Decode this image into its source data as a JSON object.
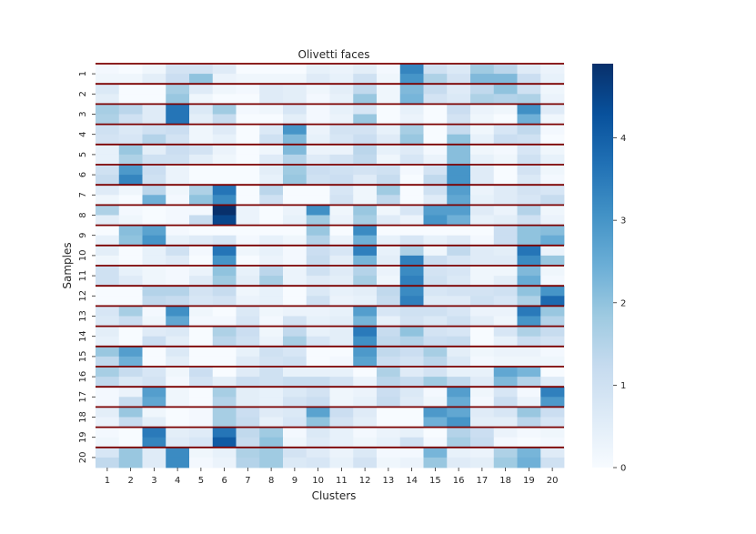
{
  "chart_data": {
    "type": "heatmap",
    "title": "Olivetti faces",
    "xlabel": "Clusters",
    "ylabel": "Samples",
    "x_categories": [
      "1",
      "2",
      "3",
      "4",
      "5",
      "6",
      "7",
      "8",
      "9",
      "10",
      "11",
      "12",
      "13",
      "14",
      "15",
      "16",
      "17",
      "18",
      "19",
      "20"
    ],
    "y_categories": [
      "1",
      "2",
      "3",
      "4",
      "5",
      "6",
      "7",
      "8",
      "9",
      "10",
      "11",
      "12",
      "13",
      "14",
      "15",
      "16",
      "17",
      "18",
      "19",
      "20"
    ],
    "colorbar_ticks": [
      0,
      1,
      2,
      3,
      4
    ],
    "value_range": [
      0,
      4.9
    ],
    "colormap": [
      "#f7fbff",
      "#deebf7",
      "#c6dbef",
      "#9ecae1",
      "#6baed6",
      "#4292c6",
      "#2171b5",
      "#08519c",
      "#08306b"
    ],
    "separator_color": "#7b0000",
    "rows_per_sample": 2,
    "values": [
      [
        0.1,
        0.0,
        0.2,
        0.9,
        0.9,
        0.6,
        0.0,
        0.0,
        0.0,
        0.4,
        0.3,
        0.5,
        0.1,
        3.3,
        1.0,
        0.7,
        1.8,
        1.4,
        0.6,
        0.3
      ],
      [
        0.2,
        0.2,
        0.5,
        1.1,
        2.0,
        0.3,
        0.2,
        0.2,
        0.2,
        0.6,
        0.4,
        1.0,
        0.2,
        3.0,
        1.6,
        0.9,
        2.2,
        2.2,
        1.1,
        0.4
      ],
      [
        0.7,
        0.0,
        0.0,
        1.7,
        0.6,
        0.2,
        0.1,
        0.6,
        0.5,
        0.2,
        0.5,
        1.3,
        0.2,
        2.2,
        1.2,
        0.6,
        1.3,
        2.0,
        1.0,
        0.2
      ],
      [
        0.5,
        0.0,
        0.0,
        1.9,
        0.2,
        0.0,
        0.0,
        0.6,
        0.5,
        0.1,
        0.4,
        1.9,
        0.2,
        2.3,
        0.9,
        0.7,
        1.6,
        1.5,
        1.6,
        0.3
      ],
      [
        1.7,
        1.4,
        0.6,
        3.6,
        0.7,
        1.8,
        0.1,
        0.2,
        0.8,
        0.1,
        0.4,
        0.8,
        0.0,
        0.4,
        0.0,
        1.1,
        0.3,
        0.2,
        3.1,
        0.6
      ],
      [
        1.6,
        1.0,
        0.6,
        3.6,
        0.5,
        1.2,
        0.0,
        0.0,
        0.5,
        0.1,
        0.3,
        1.9,
        0.0,
        0.3,
        0.0,
        0.9,
        0.2,
        0.0,
        2.4,
        0.2
      ],
      [
        1.0,
        0.7,
        1.0,
        1.1,
        0.2,
        0.6,
        0.0,
        0.7,
        3.0,
        0.3,
        0.9,
        0.9,
        0.4,
        1.7,
        0.0,
        1.2,
        0.2,
        0.8,
        1.3,
        0.1
      ],
      [
        0.9,
        0.8,
        1.5,
        0.9,
        0.2,
        0.4,
        0.0,
        1.0,
        2.2,
        0.4,
        0.8,
        1.1,
        0.6,
        1.9,
        0.0,
        2.0,
        0.4,
        1.1,
        1.0,
        0.0
      ],
      [
        0.4,
        1.9,
        0.5,
        1.1,
        0.9,
        0.3,
        0.0,
        0.2,
        2.2,
        0.3,
        0.3,
        1.4,
        0.4,
        0.6,
        0.1,
        2.1,
        0.2,
        0.1,
        0.8,
        0.2
      ],
      [
        0.4,
        1.6,
        1.0,
        1.0,
        0.5,
        0.2,
        0.0,
        0.6,
        1.5,
        0.6,
        0.9,
        1.3,
        0.2,
        0.8,
        0.3,
        2.1,
        0.4,
        0.2,
        1.0,
        0.4
      ],
      [
        1.0,
        2.9,
        1.1,
        0.3,
        0.0,
        0.0,
        0.0,
        0.5,
        1.8,
        1.1,
        1.0,
        0.9,
        1.0,
        0.1,
        0.9,
        3.0,
        0.6,
        0.0,
        0.9,
        0.2
      ],
      [
        1.2,
        3.3,
        1.0,
        0.3,
        0.0,
        0.0,
        0.0,
        0.4,
        1.9,
        1.0,
        1.1,
        0.6,
        1.2,
        0.0,
        1.3,
        3.0,
        0.6,
        0.0,
        0.7,
        0.1
      ],
      [
        0.6,
        0.2,
        1.4,
        0.2,
        1.6,
        3.6,
        0.0,
        1.4,
        0.0,
        0.0,
        0.8,
        0.2,
        1.8,
        0.0,
        1.0,
        2.8,
        0.3,
        0.6,
        0.9,
        0.8
      ],
      [
        0.2,
        0.0,
        2.4,
        0.1,
        2.0,
        3.2,
        0.0,
        1.0,
        0.0,
        0.0,
        0.9,
        0.2,
        1.3,
        0.0,
        0.6,
        2.6,
        0.4,
        0.6,
        0.8,
        1.2
      ],
      [
        1.6,
        0.1,
        0.0,
        0.1,
        0.1,
        4.9,
        0.3,
        0.0,
        0.3,
        3.1,
        0.2,
        1.9,
        0.2,
        0.8,
        2.8,
        2.8,
        0.6,
        0.3,
        1.5,
        0.2
      ],
      [
        0.5,
        0.2,
        0.0,
        0.1,
        1.2,
        4.5,
        0.3,
        0.0,
        0.4,
        1.8,
        0.3,
        1.7,
        0.6,
        0.3,
        3.0,
        2.4,
        0.4,
        0.5,
        1.0,
        0.3
      ],
      [
        0.0,
        2.1,
        2.7,
        0.1,
        0.0,
        0.0,
        0.0,
        0.0,
        0.0,
        1.9,
        0.0,
        3.2,
        0.0,
        0.0,
        0.0,
        0.0,
        0.0,
        1.1,
        2.0,
        2.1
      ],
      [
        0.4,
        2.0,
        3.0,
        0.4,
        0.6,
        0.8,
        0.1,
        0.4,
        0.2,
        1.5,
        0.3,
        2.4,
        0.4,
        0.8,
        0.4,
        0.6,
        0.1,
        1.1,
        2.0,
        2.5
      ],
      [
        0.5,
        0.0,
        0.4,
        1.0,
        0.1,
        3.6,
        0.2,
        0.4,
        0.1,
        1.1,
        0.8,
        3.4,
        0.4,
        1.6,
        0.2,
        1.3,
        0.6,
        0.5,
        3.6,
        0.3
      ],
      [
        0.2,
        0.0,
        0.4,
        0.6,
        0.0,
        3.0,
        0.0,
        0.3,
        0.1,
        1.2,
        0.5,
        2.3,
        0.5,
        3.4,
        1.1,
        0.8,
        0.6,
        0.6,
        3.2,
        1.9
      ],
      [
        1.0,
        0.4,
        0.2,
        0.1,
        0.3,
        2.0,
        0.4,
        1.4,
        0.3,
        1.0,
        0.6,
        1.5,
        0.3,
        3.2,
        0.9,
        0.8,
        0.2,
        0.2,
        2.2,
        0.2
      ],
      [
        1.0,
        0.6,
        0.2,
        0.1,
        0.6,
        1.8,
        0.5,
        1.7,
        0.3,
        0.6,
        0.5,
        1.7,
        0.2,
        3.4,
        1.0,
        0.7,
        0.2,
        0.5,
        2.5,
        0.1
      ],
      [
        0.0,
        0.0,
        1.5,
        1.5,
        0.9,
        1.2,
        0.2,
        0.4,
        0.0,
        0.7,
        0.4,
        0.5,
        1.3,
        3.2,
        0.8,
        0.9,
        0.9,
        1.0,
        2.0,
        3.0
      ],
      [
        0.0,
        0.0,
        1.3,
        1.2,
        0.8,
        0.9,
        0.3,
        0.4,
        0.0,
        1.0,
        0.3,
        0.4,
        1.2,
        3.4,
        0.6,
        0.6,
        1.0,
        0.8,
        1.6,
        3.8
      ],
      [
        0.8,
        1.7,
        0.1,
        3.1,
        0.2,
        0.0,
        0.7,
        0.2,
        0.3,
        0.3,
        0.4,
        2.8,
        0.8,
        1.0,
        1.0,
        0.8,
        0.3,
        0.3,
        3.5,
        1.9
      ],
      [
        0.7,
        1.1,
        0.2,
        2.6,
        0.1,
        0.1,
        0.8,
        0.1,
        0.9,
        0.4,
        0.5,
        2.3,
        0.4,
        0.9,
        0.7,
        1.0,
        0.5,
        0.2,
        3.0,
        1.5
      ],
      [
        0.5,
        0.0,
        0.6,
        0.7,
        0.0,
        1.6,
        1.1,
        0.2,
        1.3,
        0.4,
        0.5,
        3.5,
        1.2,
        2.0,
        0.9,
        0.8,
        0.0,
        0.8,
        1.6,
        1.2
      ],
      [
        0.4,
        0.0,
        1.1,
        0.5,
        0.0,
        1.4,
        1.0,
        0.3,
        1.7,
        0.8,
        0.5,
        3.1,
        1.3,
        1.5,
        1.1,
        1.2,
        0.0,
        0.4,
        1.1,
        0.9
      ],
      [
        1.9,
        2.8,
        0.0,
        0.7,
        0.0,
        0.0,
        0.4,
        1.0,
        0.8,
        0.0,
        0.0,
        2.9,
        1.3,
        1.1,
        1.7,
        0.5,
        0.2,
        0.3,
        0.3,
        0.1
      ],
      [
        1.3,
        2.4,
        0.0,
        0.5,
        0.0,
        0.0,
        0.6,
        0.9,
        1.0,
        0.0,
        0.1,
        2.7,
        1.1,
        0.9,
        1.4,
        0.7,
        0.1,
        0.2,
        0.2,
        0.2
      ],
      [
        1.7,
        1.2,
        0.8,
        0.2,
        1.1,
        0.0,
        0.6,
        1.0,
        0.4,
        0.4,
        0.4,
        0.0,
        1.6,
        0.6,
        0.9,
        0.4,
        0.4,
        2.6,
        2.3,
        0.0
      ],
      [
        1.3,
        0.7,
        0.9,
        0.1,
        0.9,
        0.5,
        1.1,
        1.0,
        1.2,
        1.2,
        0.9,
        0.3,
        1.4,
        1.2,
        1.8,
        1.3,
        0.6,
        2.2,
        1.5,
        0.6
      ],
      [
        0.1,
        0.3,
        2.8,
        0.2,
        0.0,
        1.7,
        0.5,
        0.4,
        0.7,
        0.9,
        0.2,
        0.3,
        1.1,
        0.7,
        0.1,
        2.8,
        0.2,
        0.8,
        0.1,
        3.4
      ],
      [
        0.1,
        1.2,
        2.6,
        0.2,
        0.0,
        1.5,
        0.5,
        0.4,
        0.9,
        1.1,
        0.2,
        0.4,
        1.2,
        0.6,
        0.2,
        2.5,
        0.1,
        1.1,
        0.3,
        2.9
      ],
      [
        0.5,
        1.9,
        0.2,
        0.0,
        0.1,
        1.7,
        1.1,
        0.6,
        0.7,
        2.7,
        1.1,
        0.6,
        0.0,
        0.0,
        2.9,
        2.6,
        0.6,
        0.8,
        1.9,
        1.1
      ],
      [
        0.3,
        1.2,
        0.5,
        0.0,
        0.1,
        1.7,
        1.2,
        0.4,
        0.8,
        2.0,
        0.9,
        0.5,
        0.0,
        0.0,
        2.4,
        3.0,
        0.5,
        0.5,
        1.4,
        0.8
      ],
      [
        0.1,
        0.0,
        3.5,
        0.5,
        0.6,
        3.6,
        1.3,
        1.8,
        0.1,
        0.7,
        0.4,
        0.1,
        0.3,
        0.4,
        0.0,
        1.5,
        1.1,
        0.3,
        0.1,
        0.2
      ],
      [
        0.2,
        0.0,
        3.3,
        0.6,
        0.8,
        4.1,
        1.2,
        2.0,
        0.2,
        0.6,
        0.4,
        0.2,
        0.4,
        1.0,
        0.1,
        1.7,
        1.2,
        0.1,
        0.0,
        0.1
      ],
      [
        0.8,
        1.9,
        0.6,
        3.2,
        0.2,
        0.4,
        1.6,
        1.8,
        0.9,
        0.6,
        0.3,
        0.7,
        0.1,
        0.1,
        2.3,
        0.4,
        0.3,
        1.6,
        2.3,
        0.6
      ],
      [
        1.3,
        1.9,
        0.6,
        3.2,
        0.1,
        0.3,
        1.5,
        1.8,
        0.7,
        0.8,
        0.4,
        0.9,
        0.2,
        0.3,
        1.9,
        0.6,
        0.5,
        1.8,
        2.4,
        1.0
      ]
    ]
  }
}
